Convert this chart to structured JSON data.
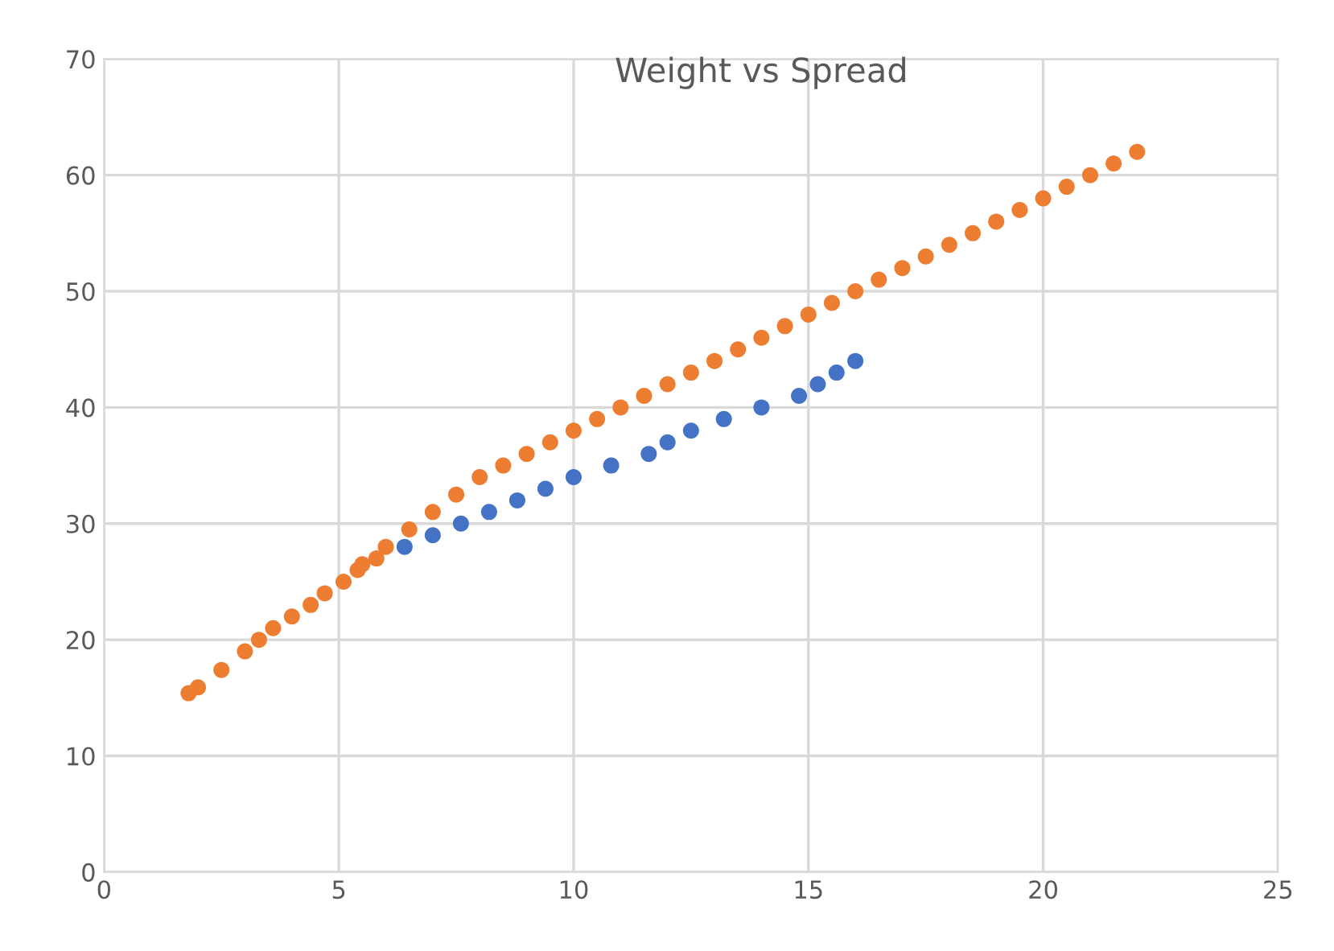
{
  "chart_data": {
    "type": "scatter",
    "title": "Weight vs Spread",
    "xlim": [
      0,
      25
    ],
    "xticks": [
      0,
      5,
      10,
      15,
      20,
      25
    ],
    "ylim": [
      0,
      70
    ],
    "yticks": [
      0,
      10,
      20,
      30,
      40,
      50,
      60,
      70
    ],
    "grid": true,
    "marker": "circle",
    "series": [
      {
        "color": "#4472c4",
        "x": [
          6.4,
          7.0,
          7.6,
          8.2,
          8.8,
          9.4,
          10.0,
          10.8,
          11.6,
          12.0,
          12.5,
          13.2,
          14.0,
          14.8,
          15.2,
          15.6,
          16.0
        ],
        "values": [
          28,
          29,
          30,
          31,
          32,
          33,
          34,
          35,
          36,
          37,
          38,
          39,
          40,
          41,
          42,
          43,
          44
        ]
      },
      {
        "color": "#ed7d31",
        "x": [
          1.8,
          2.0,
          2.5,
          3.0,
          3.3,
          3.6,
          4.0,
          4.4,
          4.7,
          5.1,
          5.4,
          5.5,
          5.8,
          6.0,
          6.5,
          7.0,
          7.5,
          8.0,
          8.5,
          9.0,
          9.5,
          10.0,
          10.5,
          11.0,
          11.5,
          12.0,
          12.5,
          13.0,
          13.5,
          14.0,
          14.5,
          15.0,
          15.5,
          16.0,
          16.5,
          17.0,
          17.5,
          18.0,
          18.5,
          19.0,
          19.5,
          20.0,
          20.5,
          21.0,
          21.5,
          22.0
        ],
        "values": [
          15.4,
          15.9,
          17.4,
          19.0,
          20.0,
          21.0,
          22.0,
          23.0,
          24.0,
          25.0,
          26.0,
          26.5,
          27.0,
          28.0,
          29.5,
          31.0,
          32.5,
          34.0,
          35.0,
          36.0,
          37.0,
          38.0,
          39.0,
          40.0,
          41.0,
          42.0,
          43.0,
          44.0,
          45.0,
          46.0,
          47.0,
          48.0,
          49.0,
          50.0,
          51.0,
          52.0,
          53.0,
          54.0,
          55.0,
          56.0,
          57.0,
          58.0,
          59.0,
          60.0,
          61.0,
          62.0
        ]
      }
    ]
  }
}
